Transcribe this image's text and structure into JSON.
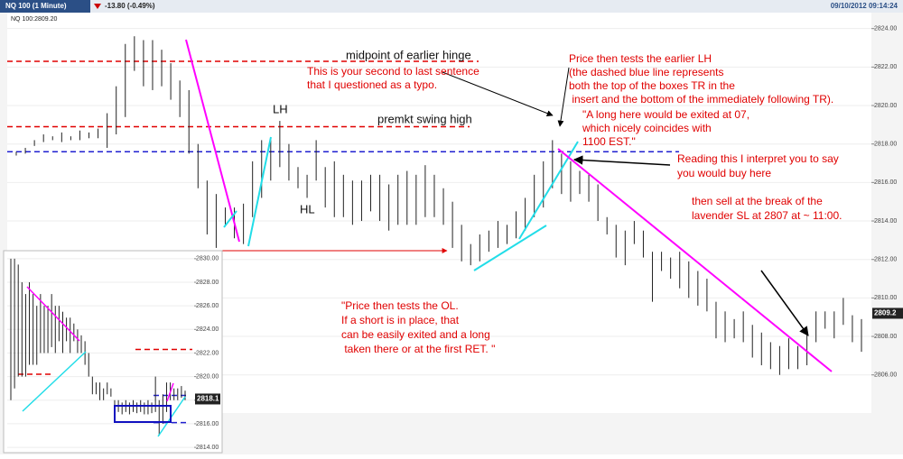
{
  "header": {
    "symbol": "NQ 100 (1 Minute)",
    "change": "-13.80 (-0.49%)",
    "timestamp": "09/10/2012 09:14:24",
    "quote": "NQ 100:2809.20"
  },
  "chart_data": [
    {
      "type": "ohlc",
      "color": "#222",
      "ylim": [
        2804.3,
        2824.5
      ],
      "yticks": [
        {
          "value": 2806,
          "label": "2806.00"
        },
        {
          "value": 2808,
          "label": "2808.00"
        },
        {
          "value": 2810,
          "label": "2810.00"
        },
        {
          "value": 2812,
          "label": "2812.00"
        },
        {
          "value": 2814,
          "label": "2814.00"
        },
        {
          "value": 2816,
          "label": "2816.00"
        },
        {
          "value": 2818,
          "label": "2818.00"
        },
        {
          "value": 2820,
          "label": "2820.00"
        },
        {
          "value": 2822,
          "label": "2822.00"
        },
        {
          "value": 2824,
          "label": "2824.00"
        }
      ],
      "grid": true,
      "last_price": 2809.2,
      "levels": [
        {
          "value": 2822.3,
          "color": "#e00000"
        },
        {
          "value": 2818.9,
          "color": "#e00000"
        },
        {
          "value": 2817.6,
          "color": "#2020d0"
        }
      ],
      "high": [
        2817.6,
        2817.8,
        2818.2,
        2818.5,
        2818.4,
        2818.6,
        2818.4,
        2818.7,
        2818.6,
        2818.8,
        2819.6,
        2821.0,
        2823.2,
        2823.6,
        2823.4,
        2823.4,
        2822.9,
        2822.2,
        2821.3,
        2820.8,
        2818.0,
        2816.1,
        2815.4,
        2814.7,
        2814.7,
        2814.9,
        2817.1,
        2818.2,
        2818.2,
        2819.2,
        2818.0,
        2816.8,
        2816.4,
        2818.2,
        2816.8,
        2817.1,
        2816.4,
        2816.1,
        2816.1,
        2816.4,
        2816.4,
        2815.9,
        2816.4,
        2816.6,
        2816.4,
        2816.9,
        2816.4,
        2815.7,
        2815.0,
        2813.8,
        2812.8,
        2813.3,
        2813.5,
        2814.0,
        2813.8,
        2814.5,
        2815.2,
        2816.4,
        2817.1,
        2818.2,
        2817.5,
        2817.1,
        2816.6,
        2816.4,
        2815.9,
        2814.2,
        2813.8,
        2813.5,
        2814.0,
        2813.5,
        2812.4,
        2812.4,
        2812.1,
        2812.4,
        2811.9,
        2811.4,
        2811.0,
        2809.8,
        2809.3,
        2808.9,
        2809.3,
        2808.6,
        2808.2,
        2807.7,
        2807.5,
        2807.9,
        2807.5,
        2808.2,
        2809.3,
        2809.3,
        2809.3,
        2810.0,
        2809.1,
        2808.9
      ],
      "low": [
        2817.4,
        2817.5,
        2817.9,
        2818.1,
        2818.2,
        2818.1,
        2818.2,
        2818.2,
        2818.3,
        2818.3,
        2817.8,
        2818.5,
        2819.4,
        2821.8,
        2821.0,
        2820.8,
        2821.0,
        2820.3,
        2819.4,
        2817.5,
        2815.7,
        2813.3,
        2812.6,
        2813.8,
        2813.1,
        2812.8,
        2814.2,
        2815.2,
        2816.1,
        2816.8,
        2816.1,
        2815.7,
        2815.2,
        2816.1,
        2814.7,
        2814.2,
        2814.2,
        2813.8,
        2814.0,
        2814.5,
        2814.0,
        2813.5,
        2813.8,
        2813.8,
        2813.8,
        2814.2,
        2814.2,
        2813.8,
        2812.6,
        2811.9,
        2811.7,
        2811.9,
        2812.4,
        2812.6,
        2812.8,
        2813.1,
        2813.5,
        2814.2,
        2814.7,
        2815.7,
        2815.4,
        2815.0,
        2815.4,
        2815.0,
        2814.0,
        2813.3,
        2812.1,
        2811.7,
        2812.8,
        2812.1,
        2809.8,
        2811.4,
        2811.0,
        2810.5,
        2810.0,
        2809.6,
        2809.3,
        2807.9,
        2807.7,
        2807.9,
        2807.7,
        2806.9,
        2806.5,
        2806.3,
        2806.0,
        2806.3,
        2806.3,
        2806.5,
        2807.7,
        2808.4,
        2807.9,
        2808.6,
        2807.7,
        2807.2
      ]
    },
    {
      "type": "ohlc",
      "color": "#222",
      "ylim": [
        2813.7,
        2830.6
      ],
      "yticks": [
        {
          "value": 2814,
          "label": "2814.00"
        },
        {
          "value": 2816,
          "label": "2816.00"
        },
        {
          "value": 2818,
          "label": "2818.00"
        },
        {
          "value": 2820,
          "label": "2820.00"
        },
        {
          "value": 2822,
          "label": "2822.00"
        },
        {
          "value": 2824,
          "label": "2824.00"
        },
        {
          "value": 2826,
          "label": "2826.00"
        },
        {
          "value": 2828,
          "label": "2828.00"
        },
        {
          "value": 2830,
          "label": "2830.00"
        }
      ],
      "grid": true,
      "last_price": 2818.1,
      "levels": [
        {
          "value": 2822.3,
          "color": "#e00000"
        },
        {
          "value": 2820.2,
          "color": "#e00000"
        },
        {
          "value": 2818.4,
          "color": "#2020d0"
        },
        {
          "value": 2816.1,
          "color": "#2020d0"
        }
      ],
      "high": [
        2830,
        2830,
        2829.5,
        2828,
        2827,
        2828,
        2827,
        2826,
        2827,
        2826,
        2826,
        2827,
        2826,
        2826,
        2825.5,
        2825,
        2825,
        2824.5,
        2824,
        2823.5,
        2823,
        2822,
        2820,
        2819.5,
        2819.5,
        2819,
        2819.5,
        2819,
        2818,
        2818,
        2817.8,
        2818,
        2817.8,
        2818,
        2817.8,
        2818,
        2817.8,
        2818,
        2817.8,
        2820,
        2818,
        2818.5,
        2819.5,
        2819.5,
        2819,
        2819,
        2819.2,
        2818.8
      ],
      "low": [
        2818,
        2819,
        2820,
        2820,
        2820,
        2821,
        2821,
        2821,
        2822,
        2822,
        2822,
        2822.5,
        2822,
        2823,
        2822,
        2823,
        2822,
        2823,
        2822,
        2822,
        2821,
        2820,
        2818.5,
        2818.5,
        2818,
        2818,
        2818.5,
        2818.3,
        2817,
        2817,
        2816.8,
        2817,
        2816.8,
        2817,
        2816.9,
        2817,
        2816.8,
        2816.8,
        2816.9,
        2817,
        2815,
        2816,
        2817,
        2818,
        2818,
        2818,
        2818.2,
        2818
      ]
    }
  ],
  "annotations": [
    {
      "lines": [
        "midpoint of earlier hinge"
      ]
    },
    {
      "lines": [
        "This is your second to last sentence",
        "that I questioned as a typo."
      ]
    },
    {
      "lines": [
        "premkt swing high"
      ]
    },
    {
      "lines": [
        "LH"
      ]
    },
    {
      "lines": [
        "HL"
      ]
    },
    {
      "lines": [
        "Price then tests the earlier LH",
        "(the dashed blue line represents",
        "both the top of the boxes TR in the",
        " insert and the bottom of the immediately following TR)."
      ]
    },
    {
      "lines": [
        "\"A long here would be exited at 07,",
        "which nicely coincides with",
        "1100 EST.\""
      ]
    },
    {
      "lines": [
        "Reading this I interpret you to say",
        "you would buy here"
      ]
    },
    {
      "lines": [
        "then sell at the break of the",
        "lavender SL at 2807 at ~ 11:00."
      ]
    },
    {
      "lines": [
        "\"Price then tests the OL.",
        "If a short is in place, that",
        "can be easily exited and a long",
        " taken there or at the first RET. \""
      ]
    }
  ]
}
